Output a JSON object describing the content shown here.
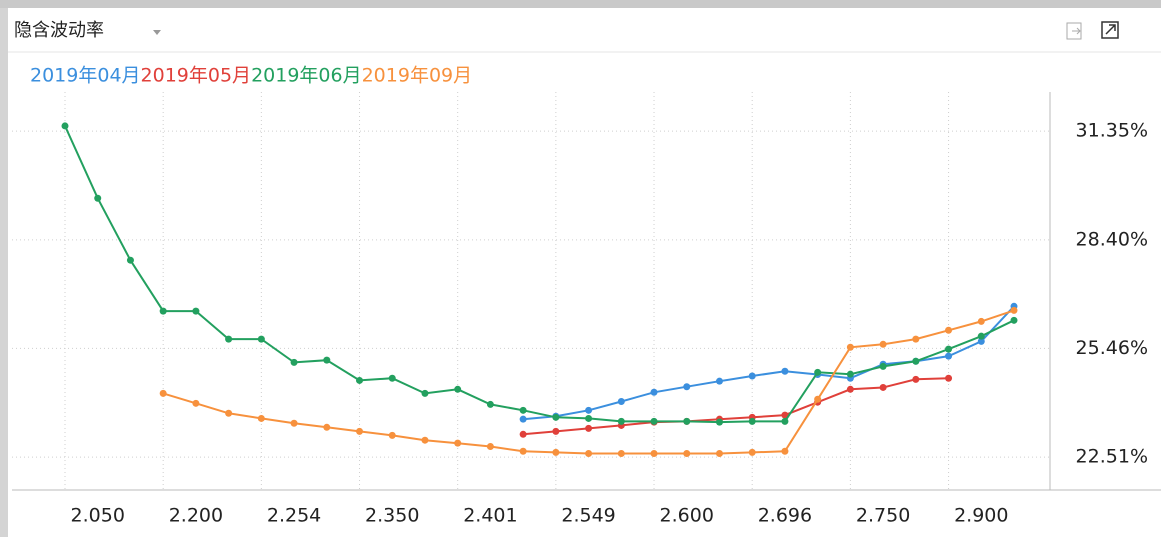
{
  "header": {
    "title": "隐含波动率"
  },
  "chart_data": {
    "type": "line",
    "categories": [
      null,
      "2.050",
      null,
      null,
      "2.200",
      null,
      null,
      "2.254",
      null,
      null,
      "2.350",
      null,
      null,
      "2.401",
      null,
      null,
      "2.549",
      null,
      null,
      "2.600",
      null,
      null,
      "2.696",
      null,
      null,
      "2.750",
      null,
      null,
      "2.900",
      null
    ],
    "series": [
      {
        "name": "2019年04月",
        "color": "#3b8fde",
        "values": [
          null,
          null,
          null,
          null,
          null,
          null,
          null,
          null,
          null,
          null,
          null,
          null,
          null,
          null,
          23.54,
          23.62,
          23.78,
          24.02,
          24.27,
          24.42,
          24.57,
          24.71,
          24.84,
          24.75,
          24.65,
          25.03,
          25.11,
          25.25,
          25.65,
          26.6
        ]
      },
      {
        "name": "2019年05月",
        "color": "#e0403a",
        "values": [
          null,
          null,
          null,
          null,
          null,
          null,
          null,
          null,
          null,
          null,
          null,
          null,
          null,
          null,
          23.13,
          23.21,
          23.29,
          23.37,
          23.46,
          23.48,
          23.54,
          23.59,
          23.65,
          24.0,
          24.35,
          24.4,
          24.62,
          24.65,
          null,
          null
        ]
      },
      {
        "name": "2019年06月",
        "color": "#23a05f",
        "values": [
          31.49,
          29.53,
          27.85,
          26.47,
          26.47,
          25.71,
          25.71,
          25.08,
          25.14,
          24.59,
          24.65,
          24.24,
          24.35,
          23.94,
          23.78,
          23.59,
          23.56,
          23.48,
          23.48,
          23.48,
          23.46,
          23.48,
          23.48,
          24.81,
          24.76,
          24.97,
          25.11,
          25.44,
          25.79,
          26.22
        ]
      },
      {
        "name": "2019年09月",
        "color": "#f7913d",
        "values": [
          null,
          null,
          null,
          24.24,
          23.97,
          23.7,
          23.56,
          23.43,
          23.32,
          23.21,
          23.1,
          22.97,
          22.89,
          22.8,
          22.67,
          22.64,
          22.61,
          22.61,
          22.61,
          22.61,
          22.61,
          22.64,
          22.67,
          24.08,
          25.49,
          25.57,
          25.71,
          25.95,
          26.19,
          26.49
        ]
      }
    ],
    "ylim": [
      21.62,
      32.41
    ],
    "yticks": [
      {
        "value": 22.51,
        "label": "22.51%"
      },
      {
        "value": 25.46,
        "label": "25.46%"
      },
      {
        "value": 28.4,
        "label": "28.40%"
      },
      {
        "value": 31.35,
        "label": "31.35%"
      }
    ],
    "grid": true
  }
}
